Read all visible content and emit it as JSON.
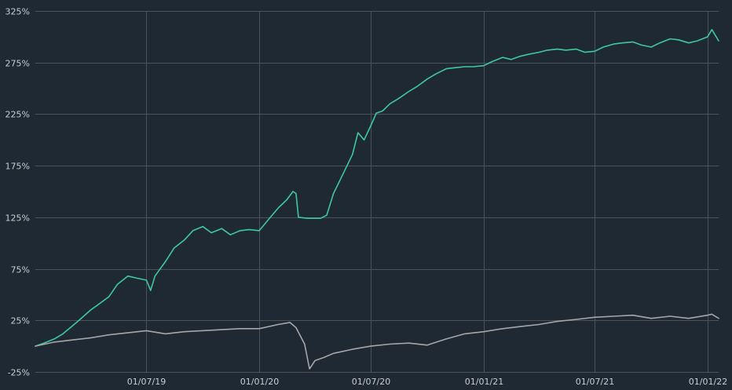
{
  "chart_data": {
    "type": "line",
    "xlabel": "",
    "ylabel": "",
    "grid": true,
    "x_range": [
      "2019-01-01",
      "2022-01-19"
    ],
    "ylim": [
      -25,
      325
    ],
    "y_ticks": [
      -25,
      25,
      75,
      125,
      175,
      225,
      275,
      325
    ],
    "y_tick_labels": [
      "-25%",
      "25%",
      "75%",
      "125%",
      "175%",
      "225%",
      "275%",
      "325%"
    ],
    "x_ticks": [
      "2019-07-01",
      "2020-01-01",
      "2020-07-01",
      "2021-01-01",
      "2021-07-01",
      "2022-01-01"
    ],
    "x_tick_labels": [
      "01/07/19",
      "01/01/20",
      "01/07/20",
      "01/01/21",
      "01/07/21",
      "01/01/22"
    ],
    "series": [
      {
        "color": "#3ec99d",
        "points": [
          [
            "2019-01-01",
            0
          ],
          [
            "2019-01-15",
            3
          ],
          [
            "2019-02-01",
            7
          ],
          [
            "2019-02-15",
            12
          ],
          [
            "2019-03-01",
            19
          ],
          [
            "2019-03-15",
            26
          ],
          [
            "2019-04-01",
            35
          ],
          [
            "2019-04-15",
            41
          ],
          [
            "2019-05-01",
            48
          ],
          [
            "2019-05-15",
            60
          ],
          [
            "2019-06-01",
            68
          ],
          [
            "2019-06-15",
            66
          ],
          [
            "2019-07-01",
            64
          ],
          [
            "2019-07-08",
            54
          ],
          [
            "2019-07-15",
            68
          ],
          [
            "2019-08-01",
            82
          ],
          [
            "2019-08-15",
            95
          ],
          [
            "2019-09-01",
            103
          ],
          [
            "2019-09-15",
            112
          ],
          [
            "2019-10-01",
            116
          ],
          [
            "2019-10-15",
            110
          ],
          [
            "2019-11-01",
            114
          ],
          [
            "2019-11-15",
            108
          ],
          [
            "2019-12-01",
            112
          ],
          [
            "2019-12-15",
            113
          ],
          [
            "2020-01-01",
            112
          ],
          [
            "2020-01-15",
            122
          ],
          [
            "2020-02-01",
            134
          ],
          [
            "2020-02-15",
            142
          ],
          [
            "2020-02-25",
            150
          ],
          [
            "2020-03-01",
            148
          ],
          [
            "2020-03-05",
            125
          ],
          [
            "2020-03-20",
            124
          ],
          [
            "2020-04-01",
            124
          ],
          [
            "2020-04-10",
            124
          ],
          [
            "2020-04-20",
            127
          ],
          [
            "2020-05-01",
            148
          ],
          [
            "2020-05-15",
            165
          ],
          [
            "2020-06-01",
            186
          ],
          [
            "2020-06-10",
            207
          ],
          [
            "2020-06-20",
            200
          ],
          [
            "2020-07-01",
            214
          ],
          [
            "2020-07-10",
            226
          ],
          [
            "2020-07-20",
            228
          ],
          [
            "2020-08-01",
            235
          ],
          [
            "2020-08-15",
            240
          ],
          [
            "2020-09-01",
            247
          ],
          [
            "2020-09-15",
            252
          ],
          [
            "2020-10-01",
            259
          ],
          [
            "2020-10-15",
            264
          ],
          [
            "2020-11-01",
            269
          ],
          [
            "2020-11-15",
            270
          ],
          [
            "2020-12-01",
            271
          ],
          [
            "2020-12-15",
            271
          ],
          [
            "2021-01-01",
            272
          ],
          [
            "2021-01-15",
            276
          ],
          [
            "2021-02-01",
            280
          ],
          [
            "2021-02-15",
            278
          ],
          [
            "2021-03-01",
            281
          ],
          [
            "2021-03-15",
            283
          ],
          [
            "2021-04-01",
            285
          ],
          [
            "2021-04-15",
            287
          ],
          [
            "2021-05-01",
            288
          ],
          [
            "2021-05-15",
            287
          ],
          [
            "2021-06-01",
            288
          ],
          [
            "2021-06-15",
            285
          ],
          [
            "2021-07-01",
            286
          ],
          [
            "2021-07-15",
            290
          ],
          [
            "2021-08-01",
            293
          ],
          [
            "2021-08-15",
            294
          ],
          [
            "2021-09-01",
            295
          ],
          [
            "2021-09-15",
            292
          ],
          [
            "2021-10-01",
            290
          ],
          [
            "2021-10-15",
            294
          ],
          [
            "2021-11-01",
            298
          ],
          [
            "2021-11-15",
            297
          ],
          [
            "2021-12-01",
            294
          ],
          [
            "2021-12-15",
            296
          ],
          [
            "2022-01-01",
            300
          ],
          [
            "2022-01-08",
            307
          ],
          [
            "2022-01-19",
            296
          ]
        ]
      },
      {
        "color": "#a6a6a6",
        "points": [
          [
            "2019-01-01",
            0
          ],
          [
            "2019-02-01",
            4
          ],
          [
            "2019-03-01",
            6
          ],
          [
            "2019-04-01",
            8
          ],
          [
            "2019-05-01",
            11
          ],
          [
            "2019-06-01",
            13
          ],
          [
            "2019-07-01",
            15
          ],
          [
            "2019-08-01",
            12
          ],
          [
            "2019-09-01",
            14
          ],
          [
            "2019-10-01",
            15
          ],
          [
            "2019-11-01",
            16
          ],
          [
            "2019-12-01",
            17
          ],
          [
            "2020-01-01",
            17
          ],
          [
            "2020-02-01",
            21
          ],
          [
            "2020-02-20",
            23
          ],
          [
            "2020-03-01",
            18
          ],
          [
            "2020-03-15",
            2
          ],
          [
            "2020-03-23",
            -22
          ],
          [
            "2020-04-01",
            -14
          ],
          [
            "2020-04-15",
            -11
          ],
          [
            "2020-05-01",
            -7
          ],
          [
            "2020-06-01",
            -3
          ],
          [
            "2020-07-01",
            0
          ],
          [
            "2020-08-01",
            2
          ],
          [
            "2020-09-01",
            3
          ],
          [
            "2020-10-01",
            1
          ],
          [
            "2020-11-01",
            7
          ],
          [
            "2020-12-01",
            12
          ],
          [
            "2021-01-01",
            14
          ],
          [
            "2021-02-01",
            17
          ],
          [
            "2021-03-01",
            19
          ],
          [
            "2021-04-01",
            21
          ],
          [
            "2021-05-01",
            24
          ],
          [
            "2021-06-01",
            26
          ],
          [
            "2021-07-01",
            28
          ],
          [
            "2021-08-01",
            29
          ],
          [
            "2021-09-01",
            30
          ],
          [
            "2021-10-01",
            27
          ],
          [
            "2021-11-01",
            29
          ],
          [
            "2021-12-01",
            27
          ],
          [
            "2022-01-01",
            30
          ],
          [
            "2022-01-08",
            31
          ],
          [
            "2022-01-19",
            27
          ]
        ]
      }
    ]
  }
}
